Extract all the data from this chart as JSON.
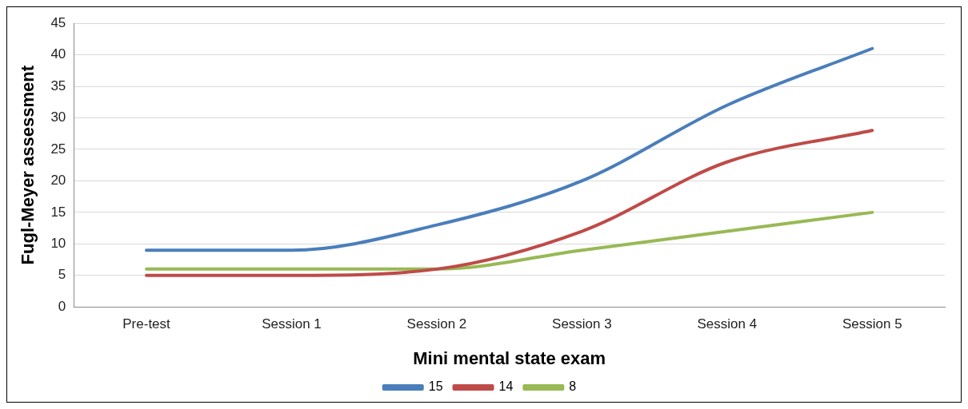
{
  "chart_data": {
    "type": "line",
    "xlabel": "Mini mental state exam",
    "ylabel": "Fugl-Meyer assessment",
    "categories": [
      "Pre-test",
      "Session 1",
      "Session 2",
      "Session 3",
      "Session 4",
      "Session 5"
    ],
    "series": [
      {
        "name": "15",
        "color": "#4a7ebb",
        "values": [
          9,
          9,
          13,
          20,
          32,
          41
        ]
      },
      {
        "name": "14",
        "color": "#be4b48",
        "values": [
          5,
          5,
          6,
          12,
          23,
          28
        ]
      },
      {
        "name": "8",
        "color": "#98b954",
        "values": [
          6,
          6,
          6,
          9,
          12,
          15
        ]
      }
    ],
    "ylim": [
      0,
      45
    ],
    "yticks": [
      0,
      5,
      10,
      15,
      20,
      25,
      30,
      35,
      40,
      45
    ],
    "grid": "y",
    "legend": "bottom",
    "marker": "none",
    "line_style": "solid"
  }
}
